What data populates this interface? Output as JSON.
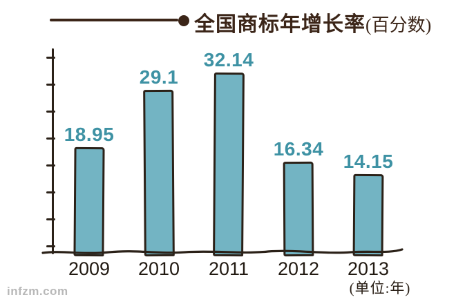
{
  "header": {
    "title": "全国商标年增长率",
    "title_suffix": "(百分数)"
  },
  "chart_data": {
    "type": "bar",
    "title": "全国商标年增长率(百分数)",
    "categories": [
      "2009",
      "2010",
      "2011",
      "2012",
      "2013"
    ],
    "values": [
      18.95,
      29.1,
      32.14,
      16.34,
      14.15
    ],
    "value_labels": [
      "18.95",
      "29.1",
      "32.14",
      "16.34",
      "14.15"
    ],
    "xlabel": "(单位:年)",
    "ylabel": "",
    "ylim": [
      0,
      36
    ],
    "grid": false,
    "legend": false,
    "y_axis_tick_count": 8,
    "style": "hand-drawn sketch",
    "bar_fill_color": "#73b4c3",
    "bar_outline_color": "#2b2118",
    "value_label_color": "#3e92a4",
    "axis_color": "#2b2118",
    "category_label_color": "#221a12",
    "title_color": "#3b2518"
  },
  "footer": {
    "unit_label": "(单位:年)",
    "watermark": "infzm.com"
  }
}
